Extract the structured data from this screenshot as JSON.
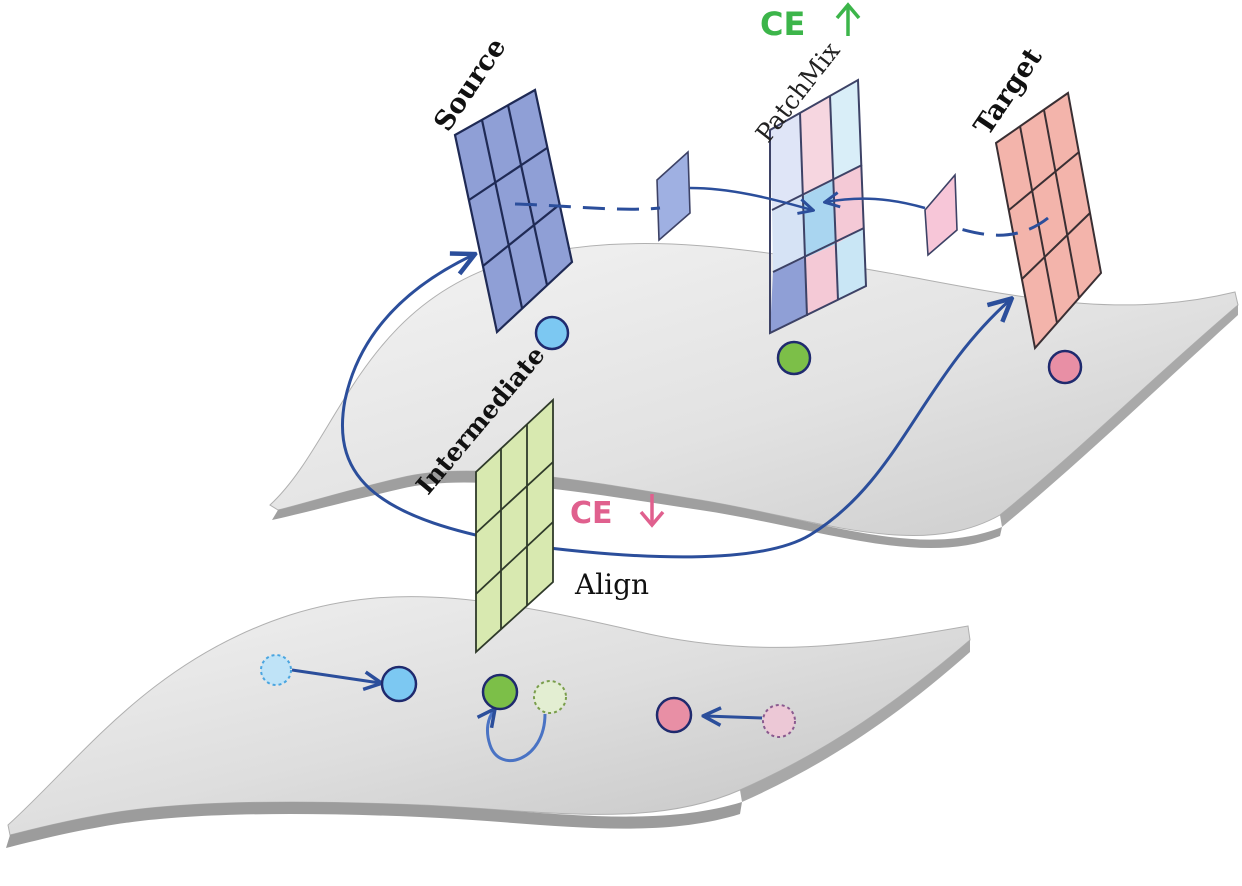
{
  "labels": {
    "source": "Source",
    "patchmix": "PatchMix",
    "target": "Target",
    "intermediate": "Intermediate",
    "align": "Align",
    "ce_up": "CE",
    "ce_down": "CE"
  },
  "colors": {
    "source": "#8f9fd6",
    "target": "#f3b4ab",
    "intermediate": "#d8e9b0",
    "patch_blue": "#aebde8",
    "patch_pink": "#f4c9d6",
    "patch_lightblue": "#c9e6f5",
    "arrow": "#2b4e9b",
    "ce_up": "#3cb54a",
    "ce_down": "#e0608e",
    "dot_blue": "#7cc8f2",
    "dot_green": "#7cbf48",
    "dot_pink": "#e88fa5",
    "surface_light": "#ececec",
    "surface_dark": "#b8b8b8"
  },
  "icons": {
    "ce_up": "arrow-up-icon",
    "ce_down": "arrow-down-icon"
  }
}
